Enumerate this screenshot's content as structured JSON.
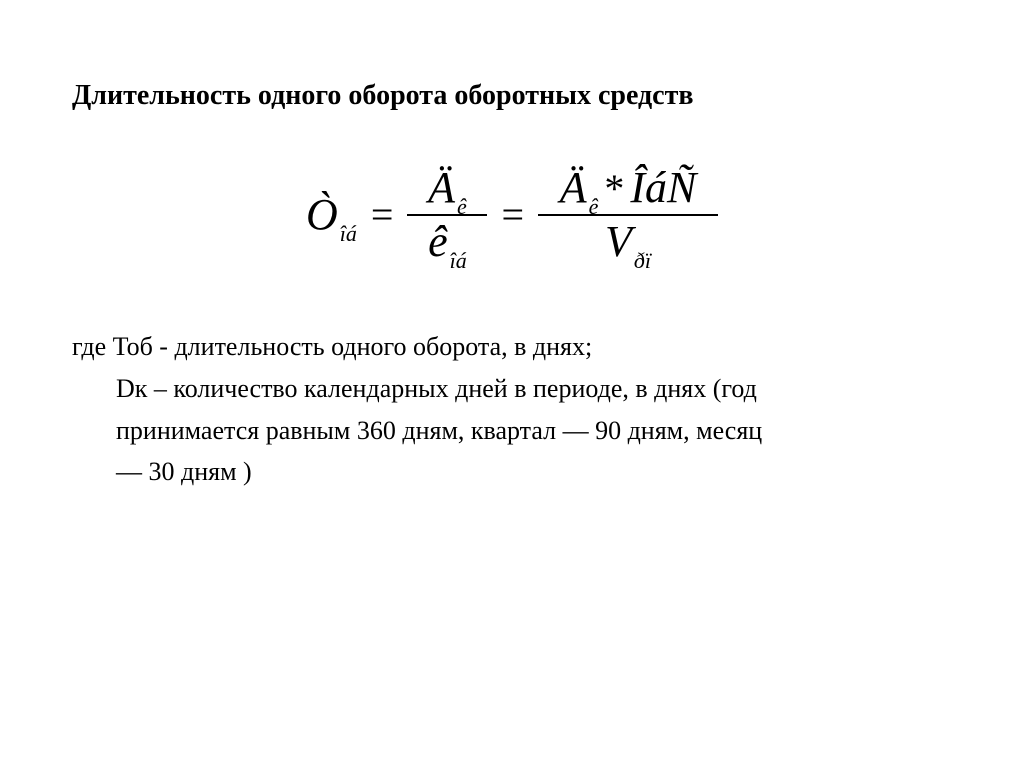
{
  "title": "Длительность одного оборота оборотных средств",
  "formula": {
    "lhs": {
      "base": "Ò",
      "sub": "îá"
    },
    "eq": "=",
    "frac1": {
      "num": {
        "base": "Ä",
        "sub": "ê"
      },
      "den": {
        "base": "ê",
        "sub": "îá"
      }
    },
    "frac2": {
      "num": {
        "t1": {
          "base": "Ä",
          "sub": "ê"
        },
        "op": "*",
        "t2": {
          "base": "ÎáÑ",
          "sub": ""
        }
      },
      "den": {
        "base": "V",
        "sub": "ðï"
      }
    }
  },
  "description": {
    "line1": "где Тоб - длительность одного оборота, в днях;",
    "line2a": "Dк – количество календарных дней в периоде, в днях (год",
    "line2b": "принимается равным 360 дням, квартал — 90 дням, месяц",
    "line2c": "— 30 дням )"
  },
  "style": {
    "bg": "#ffffff",
    "fg": "#000000",
    "title_fontsize": 28,
    "formula_fontsize": 40,
    "desc_fontsize": 26
  }
}
